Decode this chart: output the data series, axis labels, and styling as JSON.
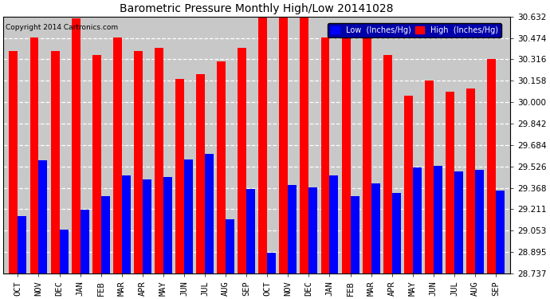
{
  "title": "Barometric Pressure Monthly High/Low 20141028",
  "copyright": "Copyright 2014 Cartronics.com",
  "legend_low": "Low  (Inches/Hg)",
  "legend_high": "High  (Inches/Hg)",
  "months": [
    "OCT",
    "NOV",
    "DEC",
    "JAN",
    "FEB",
    "MAR",
    "APR",
    "MAY",
    "JUN",
    "JUL",
    "AUG",
    "SEP",
    "OCT",
    "NOV",
    "DEC",
    "JAN",
    "FEB",
    "MAR",
    "APR",
    "MAY",
    "JUN",
    "JUL",
    "AUG",
    "SEP"
  ],
  "high_values": [
    30.38,
    30.48,
    30.38,
    30.62,
    30.35,
    30.48,
    30.38,
    30.4,
    30.17,
    30.21,
    30.3,
    30.4,
    30.63,
    30.63,
    30.63,
    30.48,
    30.48,
    30.47,
    30.35,
    30.05,
    30.16,
    30.08,
    30.1,
    30.32
  ],
  "low_values": [
    29.16,
    29.57,
    29.06,
    29.21,
    29.31,
    29.46,
    29.43,
    29.45,
    29.58,
    29.62,
    29.14,
    29.36,
    28.89,
    29.39,
    29.37,
    29.46,
    29.31,
    29.4,
    29.33,
    29.52,
    29.53,
    29.49,
    29.5,
    29.35
  ],
  "bar_color_high": "#FF0000",
  "bar_color_low": "#0000FF",
  "background_color": "#FFFFFF",
  "plot_bg_color": "#C8C8C8",
  "ylim_min": 28.737,
  "ylim_max": 30.632,
  "yticks": [
    28.737,
    28.895,
    29.053,
    29.211,
    29.368,
    29.526,
    29.684,
    29.842,
    30.0,
    30.158,
    30.316,
    30.474,
    30.632
  ]
}
